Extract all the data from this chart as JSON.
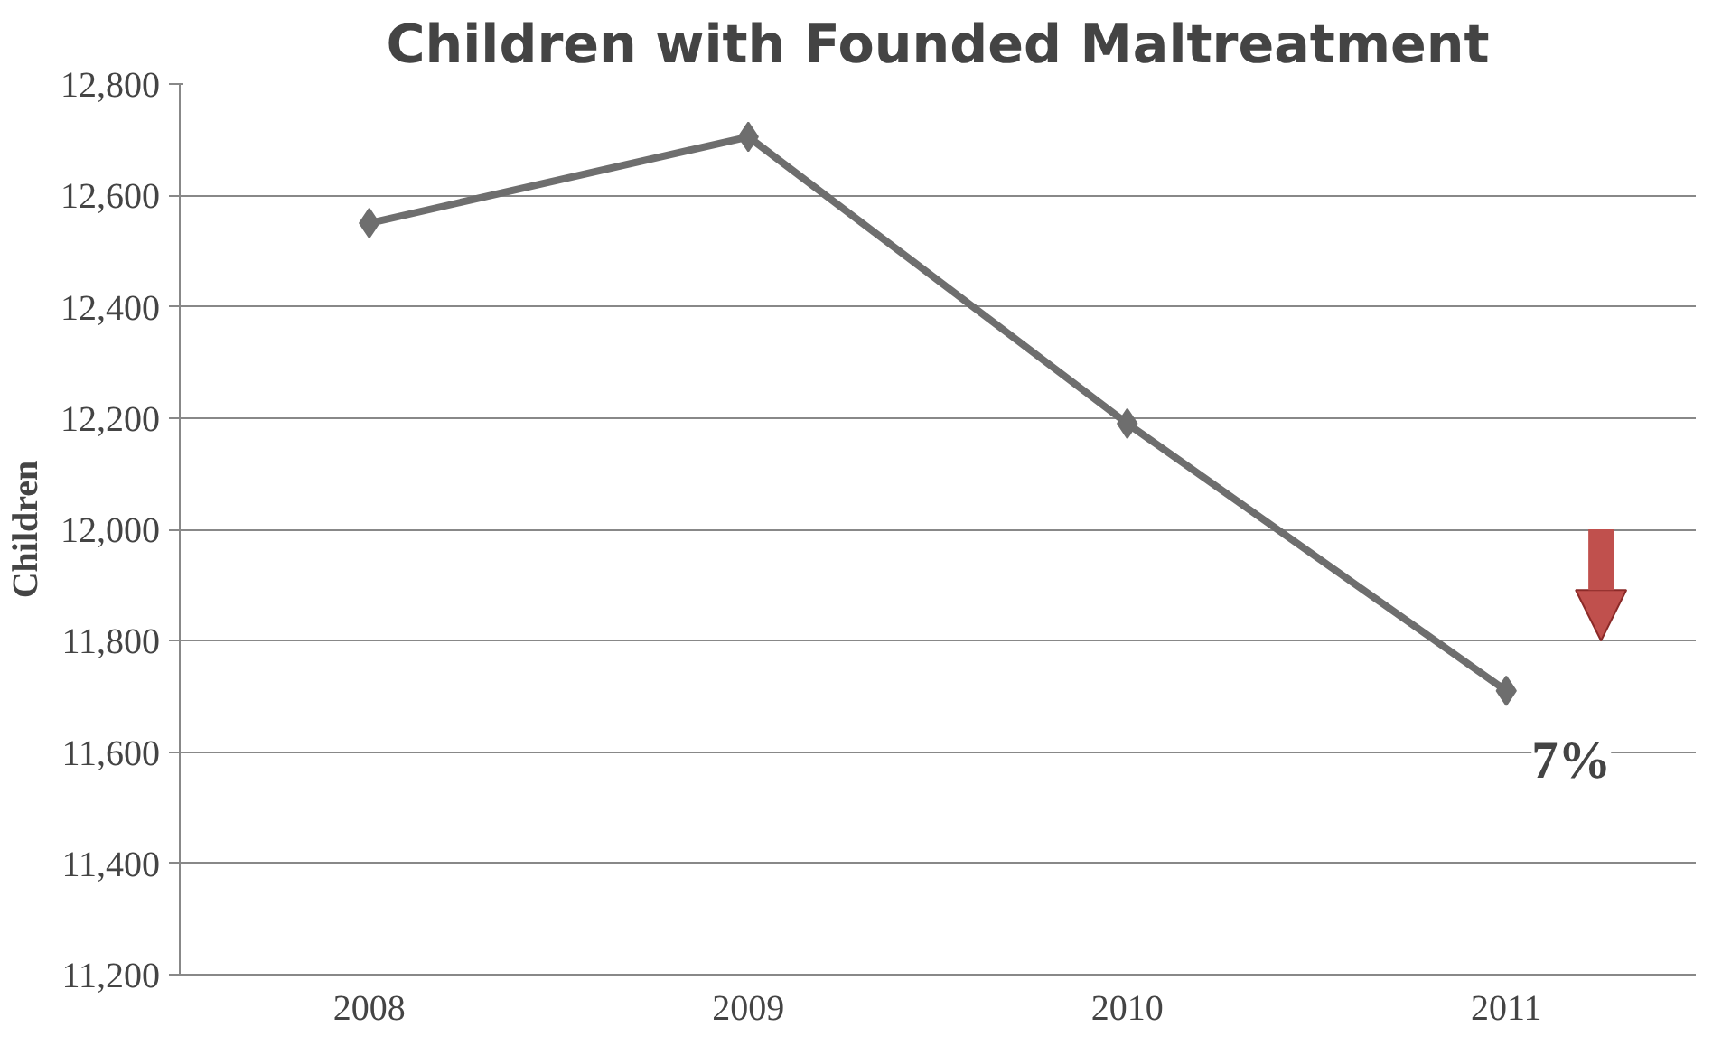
{
  "chart_data": {
    "type": "line",
    "title": "Children with Founded Maltreatment",
    "ylabel": "Children",
    "categories": [
      "2008",
      "2009",
      "2010",
      "2011"
    ],
    "series": [
      {
        "color": "#6e6e6e",
        "values": [
          12550,
          12705,
          12190,
          11710
        ]
      }
    ],
    "ylim": [
      11200,
      12800
    ],
    "yticks": [
      {
        "value": 11200,
        "label": "11,200"
      },
      {
        "value": 11400,
        "label": "11,400"
      },
      {
        "value": 11600,
        "label": "11,600"
      },
      {
        "value": 11800,
        "label": "11,800"
      },
      {
        "value": 12000,
        "label": "12,000"
      },
      {
        "value": 12200,
        "label": "12,200"
      },
      {
        "value": 12400,
        "label": "12,400"
      },
      {
        "value": 12600,
        "label": "12,600"
      },
      {
        "value": 12800,
        "label": "12,800"
      }
    ],
    "grid": "y",
    "marker": "diamond",
    "line_style": "solid",
    "annotations": [
      {
        "text": "7%",
        "x": "2011",
        "y": 11710
      }
    ]
  }
}
